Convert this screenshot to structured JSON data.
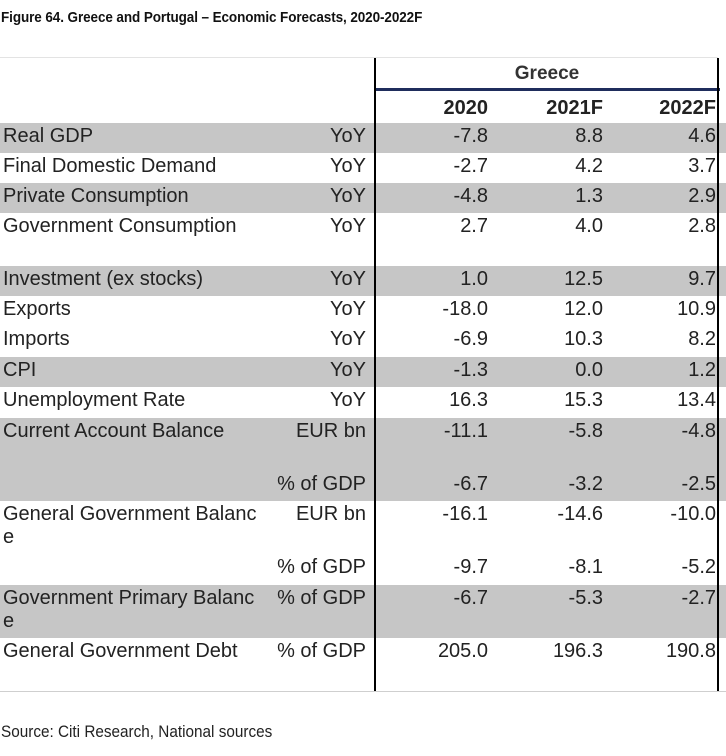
{
  "title": "Figure 64. Greece and Portugal – Economic Forecasts, 2020-2022F",
  "country": "Greece",
  "years": [
    "2020",
    "2021F",
    "2022F"
  ],
  "rows": [
    {
      "label": "Real GDP",
      "unit": "YoY",
      "values": [
        "-7.8",
        "8.8",
        "4.6"
      ]
    },
    {
      "label": "Final Domestic Demand",
      "unit": "YoY",
      "values": [
        "-2.7",
        "4.2",
        "3.7"
      ]
    },
    {
      "label": "Private Consumption",
      "unit": "YoY",
      "values": [
        "-4.8",
        "1.3",
        "2.9"
      ]
    },
    {
      "label": "Government Consumption",
      "unit": "YoY",
      "values": [
        "2.7",
        "4.0",
        "2.8"
      ]
    },
    {
      "label": "Investment (ex stocks)",
      "unit": "YoY",
      "values": [
        "1.0",
        "12.5",
        "9.7"
      ]
    },
    {
      "label": "Exports",
      "unit": "YoY",
      "values": [
        "-18.0",
        "12.0",
        "10.9"
      ]
    },
    {
      "label": "Imports",
      "unit": "YoY",
      "values": [
        "-6.9",
        "10.3",
        "8.2"
      ]
    },
    {
      "label": "CPI",
      "unit": "YoY",
      "values": [
        "-1.3",
        "0.0",
        "1.2"
      ]
    },
    {
      "label": "Unemployment Rate",
      "unit": "YoY",
      "values": [
        "16.3",
        "15.3",
        "13.4"
      ]
    },
    {
      "label": "Current Account Balance",
      "unit": "EUR bn",
      "values": [
        "-11.1",
        "-5.8",
        "-4.8"
      ]
    },
    {
      "label": "",
      "unit": "% of GDP",
      "values": [
        "-6.7",
        "-3.2",
        "-2.5"
      ]
    },
    {
      "label": "General Government Balance",
      "unit": "EUR bn",
      "values": [
        "-16.1",
        "-14.6",
        "-10.0"
      ]
    },
    {
      "label": "",
      "unit": "% of GDP",
      "values": [
        "-9.7",
        "-8.1",
        "-5.2"
      ]
    },
    {
      "label": "Government Primary Balance",
      "unit": "% of GDP",
      "values": [
        "-6.7",
        "-5.3",
        "-2.7"
      ]
    },
    {
      "label": "General Government Debt",
      "unit": "% of GDP",
      "values": [
        "205.0",
        "196.3",
        "190.8"
      ]
    }
  ],
  "source": "Source: Citi Research, National sources"
}
